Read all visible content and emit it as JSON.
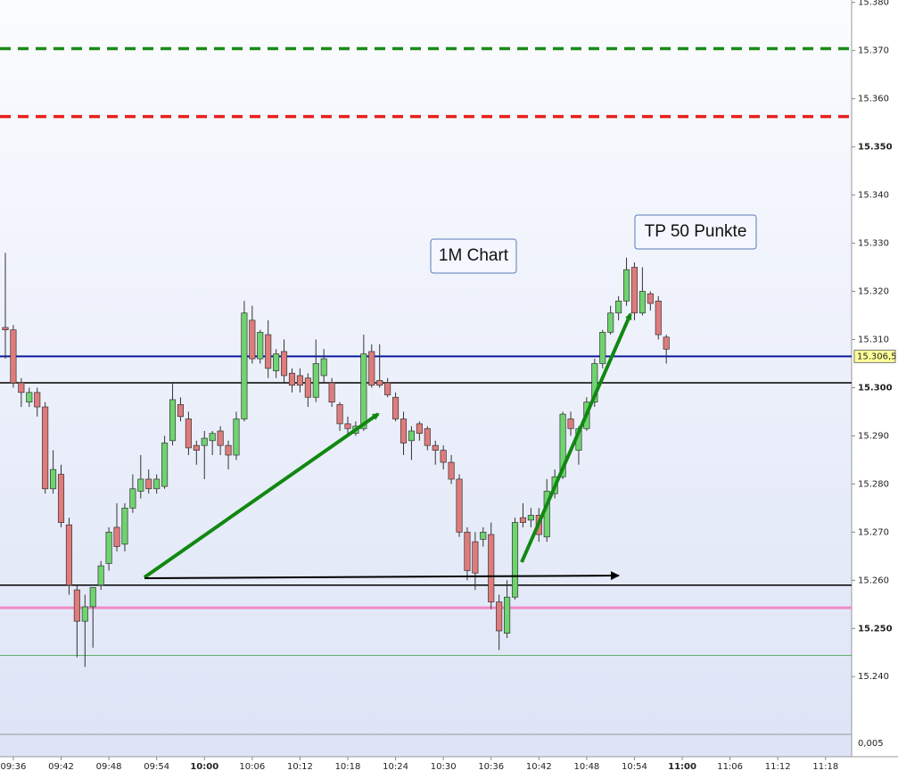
{
  "chart_data": {
    "type": "candlestick",
    "up_color": "#6fd36f",
    "down_color": "#e07b7b",
    "ylim": [
      15.228,
      15.3805
    ],
    "yticks": [
      {
        "value": 15.24,
        "label": "15.240"
      },
      {
        "value": 15.25,
        "label": "15.250"
      },
      {
        "value": 15.26,
        "label": "15.260"
      },
      {
        "value": 15.27,
        "label": "15.270"
      },
      {
        "value": 15.28,
        "label": "15.280"
      },
      {
        "value": 15.29,
        "label": "15.290"
      },
      {
        "value": 15.3,
        "label": "15.300"
      },
      {
        "value": 15.31,
        "label": "15.310"
      },
      {
        "value": 15.32,
        "label": "15.320"
      },
      {
        "value": 15.33,
        "label": "15.330"
      },
      {
        "value": 15.34,
        "label": "15.340"
      },
      {
        "value": 15.35,
        "label": "15.350"
      },
      {
        "value": 15.36,
        "label": "15.360"
      },
      {
        "value": 15.37,
        "label": "15.370"
      },
      {
        "value": 15.38,
        "label": "15.380"
      }
    ],
    "categories": [
      null,
      "09:36",
      null,
      null,
      null,
      null,
      null,
      "09:42",
      null,
      null,
      null,
      null,
      null,
      "09:48",
      null,
      null,
      null,
      null,
      null,
      "09:54",
      null,
      null,
      null,
      null,
      null,
      "10:00",
      null,
      null,
      null,
      null,
      null,
      "10:06",
      null,
      null,
      null,
      null,
      null,
      "10:12",
      null,
      null,
      null,
      null,
      null,
      "10:18",
      null,
      null,
      null,
      null,
      null,
      "10:24",
      null,
      null,
      null,
      null,
      null,
      "10:30",
      null,
      null,
      null,
      null,
      null,
      "10:36",
      null,
      null,
      null,
      null,
      null,
      "10:42",
      null,
      null,
      null,
      null,
      null,
      "10:48",
      null,
      null,
      null,
      null,
      null,
      "10:54",
      null,
      null,
      null,
      null,
      null,
      "11:00",
      null,
      null,
      null,
      null,
      null,
      "11:06",
      null,
      null,
      null,
      null,
      null,
      "11:12",
      null,
      null,
      null,
      null,
      null,
      "11:18",
      null
    ],
    "open": [
      15.3125,
      15.312,
      15.301,
      15.297,
      15.299,
      15.296,
      15.279,
      15.282,
      15.2715,
      15.258,
      15.2515,
      15.2545,
      15.259,
      15.2635,
      15.271,
      15.2675,
      15.275,
      15.2785,
      15.281,
      15.279,
      15.2795,
      15.289,
      15.2965,
      15.2935,
      15.288,
      15.288,
      15.289,
      15.291,
      15.288,
      15.286,
      15.2935,
      15.314,
      15.306,
      15.311,
      15.3035,
      15.3075,
      15.303,
      15.3025,
      15.302,
      15.298,
      15.3025,
      15.301,
      15.2965,
      15.2925,
      15.2905,
      15.2915,
      15.3075,
      15.3015,
      15.301,
      15.298,
      15.2935,
      15.289,
      15.2925,
      15.2915,
      15.288,
      15.287,
      15.2845,
      15.281,
      15.27,
      15.268,
      15.2685,
      15.2695,
      15.2555,
      15.249,
      15.2565,
      15.273,
      15.2725,
      15.2735,
      15.269,
      15.278,
      15.2815,
      15.2935,
      15.287,
      15.2915,
      15.297,
      15.305,
      15.3115,
      15.3155,
      15.318,
      15.325,
      15.3155,
      15.3195,
      15.318,
      15.3105,
      null,
      null,
      null,
      null,
      null,
      null,
      null,
      null,
      null,
      null,
      null,
      null,
      null,
      null,
      null,
      null,
      null,
      null,
      null,
      null,
      null
    ],
    "high": [
      15.328,
      15.313,
      15.302,
      15.3,
      15.3,
      15.297,
      15.287,
      15.284,
      15.273,
      15.259,
      15.257,
      15.2585,
      15.264,
      15.271,
      15.276,
      15.276,
      15.282,
      15.286,
      15.283,
      15.282,
      15.29,
      15.301,
      15.298,
      15.295,
      15.289,
      15.291,
      15.291,
      15.292,
      15.289,
      15.295,
      15.318,
      15.317,
      15.312,
      15.314,
      15.308,
      15.31,
      15.304,
      15.304,
      15.303,
      15.31,
      15.308,
      15.302,
      15.297,
      15.294,
      15.293,
      15.311,
      15.309,
      15.309,
      15.302,
      15.299,
      15.295,
      15.292,
      15.293,
      15.292,
      15.289,
      15.288,
      15.286,
      15.282,
      15.271,
      15.27,
      15.271,
      15.272,
      15.257,
      15.26,
      15.273,
      15.276,
      15.275,
      15.275,
      15.281,
      15.283,
      15.295,
      15.295,
      15.292,
      15.298,
      15.306,
      15.312,
      15.317,
      15.319,
      15.327,
      15.326,
      15.325,
      15.32,
      15.319,
      15.311,
      null,
      null,
      null,
      null,
      null,
      null,
      null,
      null,
      null,
      null,
      null,
      null,
      null,
      null,
      null,
      null,
      null,
      null,
      null,
      null,
      null
    ],
    "low": [
      15.306,
      15.3,
      15.296,
      15.296,
      15.294,
      15.278,
      15.278,
      15.271,
      15.257,
      15.244,
      15.242,
      15.246,
      15.258,
      15.262,
      15.266,
      15.266,
      15.274,
      15.277,
      15.278,
      15.278,
      15.279,
      15.288,
      15.293,
      15.286,
      15.284,
      15.281,
      15.286,
      15.286,
      15.283,
      15.285,
      15.293,
      15.305,
      15.305,
      15.302,
      15.302,
      15.301,
      15.299,
      15.299,
      15.296,
      15.297,
      15.301,
      15.296,
      15.291,
      15.29,
      15.29,
      15.291,
      15.3,
      15.3,
      15.298,
      15.293,
      15.286,
      15.285,
      15.289,
      15.287,
      15.284,
      15.283,
      15.28,
      15.269,
      15.26,
      15.258,
      15.267,
      15.254,
      15.2455,
      15.248,
      15.256,
      15.271,
      15.271,
      15.268,
      15.268,
      15.277,
      15.281,
      15.29,
      15.284,
      15.291,
      15.296,
      15.304,
      15.311,
      15.314,
      15.317,
      15.314,
      15.315,
      15.316,
      15.31,
      15.305,
      null,
      null,
      null,
      null,
      null,
      null,
      null,
      null,
      null,
      null,
      null,
      null,
      null,
      null,
      null,
      null,
      null,
      null,
      null,
      null,
      null
    ],
    "close": [
      15.312,
      15.301,
      15.299,
      15.299,
      15.296,
      15.279,
      15.283,
      15.272,
      15.259,
      15.2515,
      15.2545,
      15.2585,
      15.263,
      15.27,
      15.267,
      15.275,
      15.279,
      15.281,
      15.279,
      15.281,
      15.2885,
      15.2975,
      15.294,
      15.2875,
      15.287,
      15.2895,
      15.2905,
      15.288,
      15.286,
      15.2935,
      15.3155,
      15.306,
      15.3115,
      15.304,
      15.307,
      15.3025,
      15.3005,
      15.3005,
      15.298,
      15.305,
      15.306,
      15.297,
      15.2925,
      15.2915,
      15.292,
      15.307,
      15.3005,
      15.3005,
      15.2985,
      15.2935,
      15.2885,
      15.291,
      15.2905,
      15.288,
      15.287,
      15.2845,
      15.281,
      15.27,
      15.262,
      15.2615,
      15.27,
      15.2555,
      15.2495,
      15.2565,
      15.272,
      15.272,
      15.2735,
      15.2695,
      15.2785,
      15.2815,
      15.2945,
      15.2915,
      15.2915,
      15.297,
      15.305,
      15.3115,
      15.3155,
      15.318,
      15.3245,
      15.3155,
      15.32,
      15.3175,
      15.311,
      15.308,
      null,
      null,
      null,
      null,
      null,
      null,
      null,
      null,
      null,
      null,
      null,
      null,
      null,
      null,
      null,
      null,
      null,
      null,
      null,
      null,
      null
    ],
    "levels": [
      {
        "value": 15.3704,
        "color": "#1a8a1a",
        "style": "dashed"
      },
      {
        "value": 15.3563,
        "color": "#e8201c",
        "style": "dashed"
      },
      {
        "value": 15.3065,
        "color": "#0a1aa0",
        "style": "solid",
        "label": "15.306,5"
      },
      {
        "value": 15.301,
        "color": "#000000",
        "style": "solid"
      },
      {
        "value": 15.259,
        "color": "#000000",
        "style": "solid"
      },
      {
        "value": 15.2543,
        "color": "#f08ac8",
        "style": "solid"
      },
      {
        "value": 15.2444,
        "color": "#3aa53a",
        "style": "thin"
      }
    ],
    "annotations": [
      "1M Chart",
      "TP 50 Punkte"
    ],
    "indicator_label": "0,005"
  }
}
